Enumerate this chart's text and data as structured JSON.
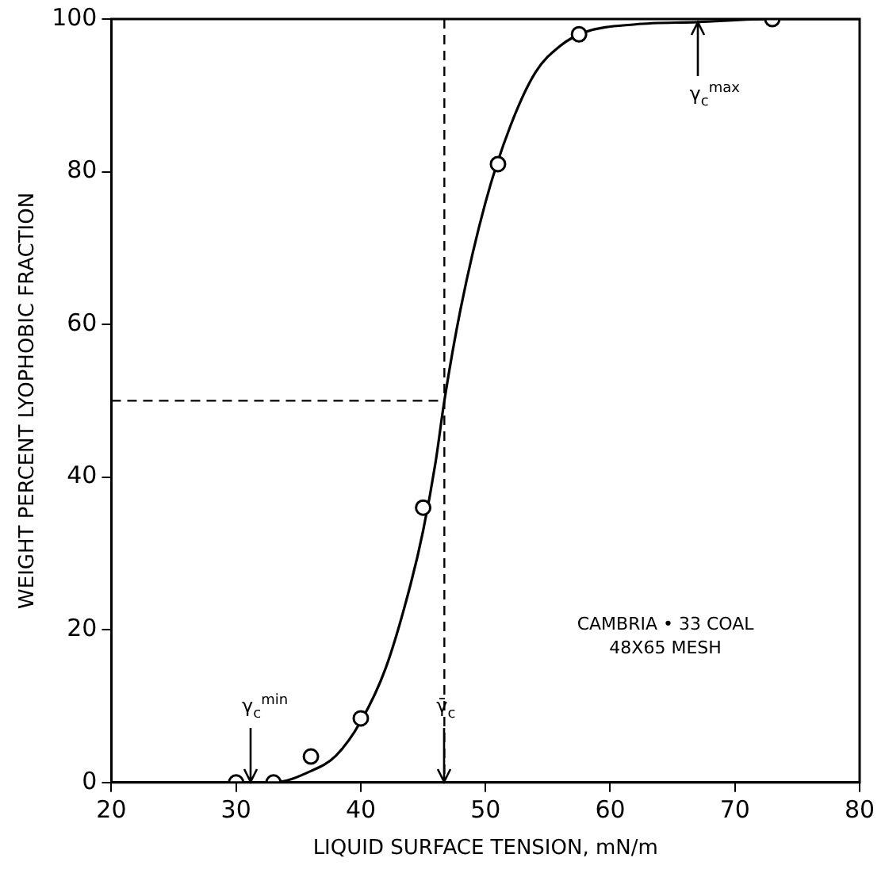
{
  "chart_data": {
    "type": "scatter",
    "xlabel": "LIQUID SURFACE TENSION, mN/m",
    "ylabel": "WEIGHT PERCENT LYOPHOBIC FRACTION",
    "xlim": [
      20,
      80
    ],
    "xticks": [
      20,
      30,
      40,
      50,
      60,
      70,
      80
    ],
    "ylim": [
      0,
      100
    ],
    "yticks": [
      0,
      20,
      40,
      60,
      80,
      100
    ],
    "grid": false,
    "legend": false,
    "series": [
      {
        "color": "#000000",
        "marker": "circle",
        "x": [
          30,
          33,
          36,
          40,
          45,
          51,
          57.5,
          73
        ],
        "values": [
          0,
          0,
          3.4,
          8.4,
          36,
          81,
          98,
          100
        ]
      },
      {
        "type": "line",
        "color": "#000000",
        "marker": "none",
        "line_style": "solid",
        "x": [
          20,
          30,
          33,
          36,
          38,
          40,
          42,
          44,
          45,
          46,
          46.7,
          48,
          50,
          52,
          54,
          56,
          58,
          62,
          67,
          73,
          80
        ],
        "values": [
          0,
          0,
          0,
          1.5,
          3.5,
          8,
          15,
          26,
          33,
          42,
          50,
          62,
          76,
          86,
          93,
          96.5,
          98.3,
          99.3,
          99.6,
          100,
          100
        ]
      }
    ],
    "ref_lines": [
      {
        "axis": "x",
        "value": 46.7,
        "line_style": "dashed"
      },
      {
        "axis": "y",
        "value": 50,
        "line_style": "dashed"
      }
    ],
    "annotations": [
      {
        "text": "γ$_{c}$$^{min}$",
        "x": 31.1,
        "y": 0
      },
      {
        "text": "γ̄$_{c}$",
        "x": 46.7,
        "y": 0
      },
      {
        "text": "γ$_{c}$$^{max}$",
        "x": 67,
        "y": 99.6
      },
      "CAMBRIA • 33 COAL",
      "48X65 MESH"
    ]
  }
}
